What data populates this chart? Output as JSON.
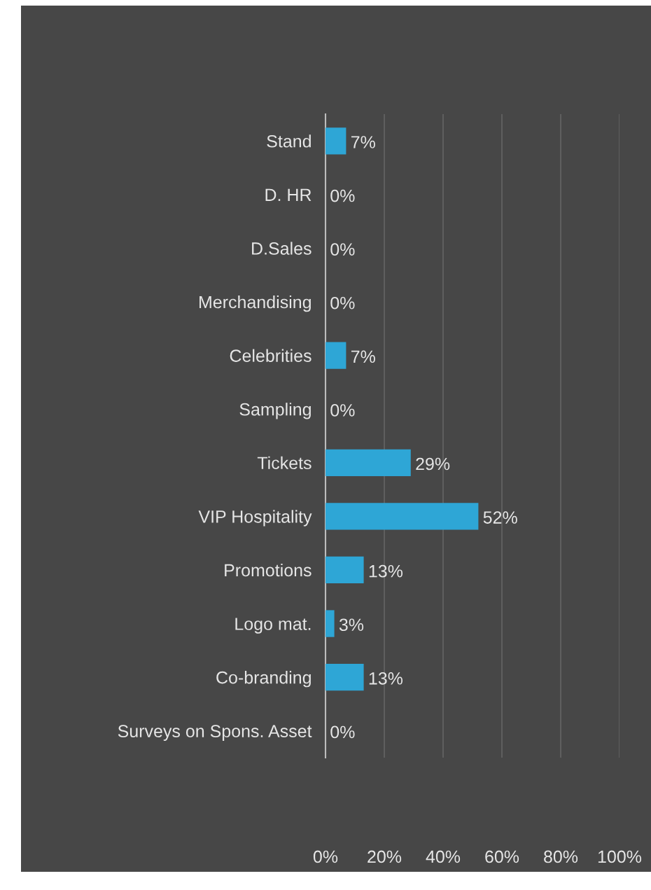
{
  "chart_data": {
    "type": "bar",
    "orientation": "horizontal",
    "categories": [
      "Stand",
      "D. HR",
      "D.Sales",
      "Merchandising",
      "Celebrities",
      "Sampling",
      "Tickets",
      "VIP Hospitality",
      "Promotions",
      "Logo mat.",
      "Co-branding",
      "Surveys on Spons. Asset"
    ],
    "values": [
      7,
      0,
      0,
      0,
      7,
      0,
      29,
      52,
      13,
      3,
      13,
      0
    ],
    "value_labels": [
      "7%",
      "0%",
      "0%",
      "0%",
      "7%",
      "0%",
      "29%",
      "52%",
      "13%",
      "3%",
      "13%",
      "0%"
    ],
    "color": "#2ea6d6",
    "xlim": [
      0,
      100
    ],
    "xticks": [
      {
        "value": 0,
        "label": "0%"
      },
      {
        "value": 20,
        "label": "20%"
      },
      {
        "value": 40,
        "label": "40%"
      },
      {
        "value": 60,
        "label": "60%"
      },
      {
        "value": 80,
        "label": "80%"
      },
      {
        "value": 100,
        "label": "100%"
      }
    ],
    "grid": "x"
  }
}
